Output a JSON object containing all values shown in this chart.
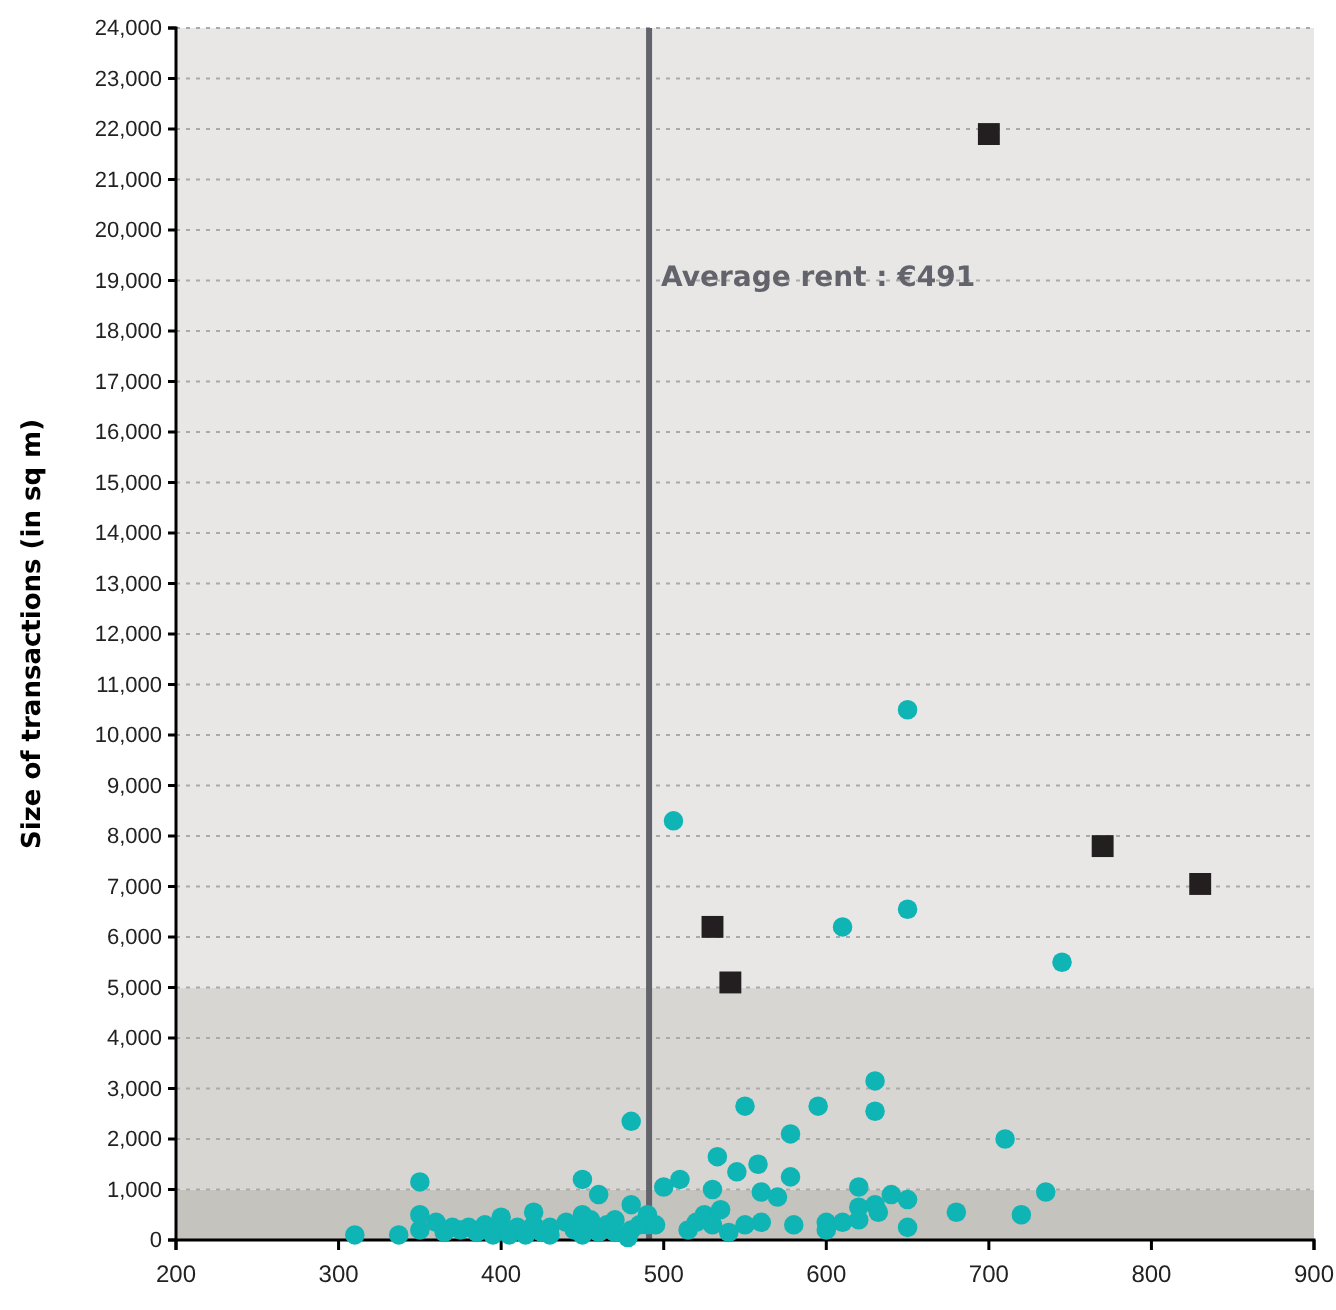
{
  "chart_data": {
    "type": "scatter",
    "ylabel": "Size of transactions (in sq m)",
    "xlim": [
      200,
      900
    ],
    "xticks": [
      200,
      300,
      400,
      500,
      600,
      700,
      800,
      900
    ],
    "ylim": [
      0,
      24000
    ],
    "yticks": [
      {
        "value": 0,
        "label": "0"
      },
      {
        "value": 1000,
        "label": "1,000"
      },
      {
        "value": 2000,
        "label": "2,000"
      },
      {
        "value": 3000,
        "label": "3,000"
      },
      {
        "value": 4000,
        "label": "4,000"
      },
      {
        "value": 5000,
        "label": "5,000"
      },
      {
        "value": 6000,
        "label": "6,000"
      },
      {
        "value": 7000,
        "label": "7,000"
      },
      {
        "value": 8000,
        "label": "8,000"
      },
      {
        "value": 9000,
        "label": "9,000"
      },
      {
        "value": 10000,
        "label": "10,000"
      },
      {
        "value": 11000,
        "label": "11,000"
      },
      {
        "value": 12000,
        "label": "12,000"
      },
      {
        "value": 13000,
        "label": "13,000"
      },
      {
        "value": 14000,
        "label": "14,000"
      },
      {
        "value": 15000,
        "label": "15,000"
      },
      {
        "value": 16000,
        "label": "16,000"
      },
      {
        "value": 17000,
        "label": "17,000"
      },
      {
        "value": 18000,
        "label": "18,000"
      },
      {
        "value": 19000,
        "label": "19,000"
      },
      {
        "value": 20000,
        "label": "20,000"
      },
      {
        "value": 21000,
        "label": "21,000"
      },
      {
        "value": 22000,
        "label": "22,000"
      },
      {
        "value": 23000,
        "label": "23,000"
      },
      {
        "value": 24000,
        "label": "24,000"
      }
    ],
    "grid": "y",
    "bands": [
      {
        "axis": "y",
        "from": 0,
        "to": 1000,
        "color": "#c4c3bd"
      },
      {
        "axis": "y",
        "from": 1000,
        "to": 5000,
        "color": "#d8d6d2"
      },
      {
        "axis": "y",
        "from": 5000,
        "to": 24000,
        "color": "#e8e7e6"
      }
    ],
    "ref_lines": [
      {
        "axis": "x",
        "value": 491,
        "label": "Average rent : €491",
        "color": "#63636b"
      }
    ],
    "series": [
      {
        "color": "#0fb4b4",
        "marker": "circle",
        "x": [
          506,
          650,
          650,
          610,
          745,
          480,
          550,
          595,
          630,
          630,
          578,
          710,
          533,
          558,
          578,
          545,
          510,
          350,
          450,
          620,
          500,
          735,
          640,
          460,
          530,
          560,
          570,
          650,
          630,
          680,
          720,
          620,
          650,
          600,
          580,
          610,
          600,
          620,
          632,
          560,
          550,
          540,
          525,
          515,
          520,
          530,
          535,
          480,
          490,
          310,
          337,
          350,
          350,
          360,
          365,
          370,
          380,
          390,
          395,
          400,
          400,
          405,
          410,
          420,
          420,
          425,
          430,
          440,
          445,
          450,
          450,
          460,
          465,
          470,
          480,
          485,
          490,
          470,
          478,
          495,
          430,
          455,
          375,
          385,
          415
        ],
        "values": [
          8300,
          10500,
          6550,
          6200,
          5500,
          2350,
          2650,
          2650,
          3150,
          2550,
          2100,
          2000,
          1650,
          1500,
          1250,
          1350,
          1200,
          1150,
          1200,
          1050,
          1050,
          950,
          900,
          900,
          1000,
          950,
          850,
          800,
          700,
          550,
          500,
          650,
          250,
          350,
          300,
          350,
          200,
          400,
          550,
          350,
          300,
          150,
          500,
          200,
          350,
          300,
          600,
          700,
          300,
          100,
          100,
          500,
          200,
          350,
          150,
          250,
          250,
          300,
          100,
          450,
          200,
          100,
          250,
          550,
          300,
          150,
          250,
          350,
          200,
          500,
          100,
          150,
          300,
          400,
          200,
          300,
          500,
          150,
          50,
          300,
          100,
          400,
          200,
          150,
          100
        ]
      },
      {
        "color": "#231f20",
        "marker": "square",
        "x": [
          700,
          770,
          830,
          530,
          541
        ],
        "values": [
          21900,
          7800,
          7050,
          6200,
          5100
        ]
      }
    ]
  }
}
